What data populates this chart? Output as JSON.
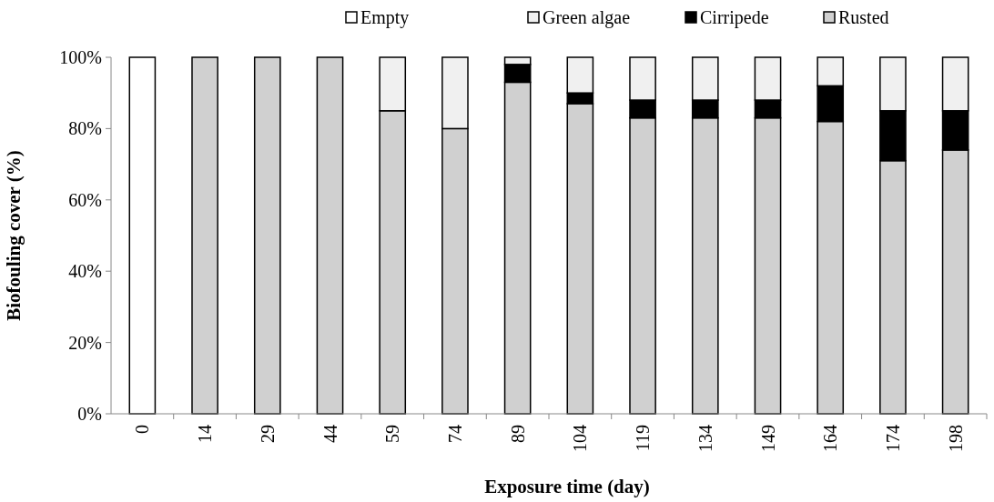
{
  "chart_data": {
    "type": "bar",
    "stacked": true,
    "xlabel": "Exposure time (day)",
    "ylabel": "Biofouling cover (%)",
    "categories": [
      "0",
      "14",
      "29",
      "44",
      "59",
      "74",
      "89",
      "104",
      "119",
      "134",
      "149",
      "164",
      "174",
      "198"
    ],
    "series": [
      {
        "name": "Rusted",
        "color": "#d0d0d0",
        "values": [
          0,
          100,
          100,
          100,
          85,
          80,
          93,
          87,
          83,
          83,
          83,
          82,
          71,
          74
        ]
      },
      {
        "name": "Cirripede",
        "color": "#000000",
        "values": [
          0,
          0,
          0,
          0,
          0,
          0,
          5,
          3,
          5,
          5,
          5,
          10,
          14,
          11
        ]
      },
      {
        "name": "Green algae",
        "color": "#f0f0f0",
        "values": [
          0,
          0,
          0,
          0,
          15,
          20,
          2,
          10,
          12,
          12,
          12,
          8,
          15,
          15
        ]
      },
      {
        "name": "Empty",
        "color": "#ffffff",
        "values": [
          100,
          0,
          0,
          0,
          0,
          0,
          0,
          0,
          0,
          0,
          0,
          0,
          0,
          0
        ]
      }
    ],
    "ylim": [
      0,
      100
    ],
    "yticks": [
      {
        "value": 0,
        "label": "0%"
      },
      {
        "value": 20,
        "label": "20%"
      },
      {
        "value": 40,
        "label": "40%"
      },
      {
        "value": 60,
        "label": "60%"
      },
      {
        "value": 80,
        "label": "80%"
      },
      {
        "value": 100,
        "label": "100%"
      }
    ],
    "grid": false,
    "legend": "top"
  }
}
